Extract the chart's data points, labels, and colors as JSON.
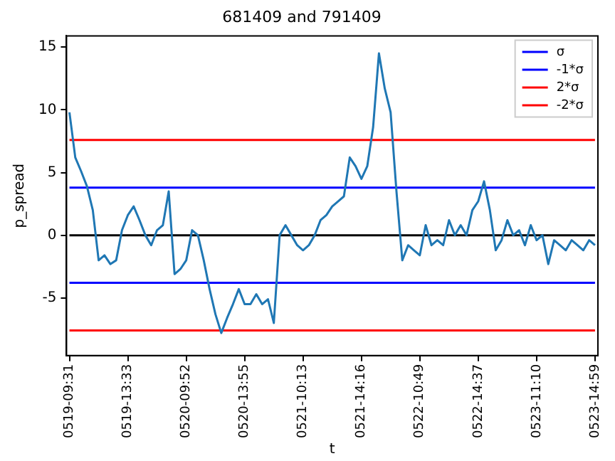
{
  "chart_data": {
    "type": "line",
    "title": "681409 and 791409",
    "xlabel": "t",
    "ylabel": "p_spread",
    "categories": [
      "0519-09:31",
      null,
      null,
      null,
      null,
      null,
      null,
      null,
      null,
      null,
      "0519-13:33",
      null,
      null,
      null,
      null,
      null,
      null,
      null,
      null,
      null,
      "0520-09:52",
      null,
      null,
      null,
      null,
      null,
      null,
      null,
      null,
      null,
      "0520-13:55",
      null,
      null,
      null,
      null,
      null,
      null,
      null,
      null,
      null,
      "0521-10:13",
      null,
      null,
      null,
      null,
      null,
      null,
      null,
      null,
      null,
      "0521-14:16",
      null,
      null,
      null,
      null,
      null,
      null,
      null,
      null,
      null,
      "0522-10:49",
      null,
      null,
      null,
      null,
      null,
      null,
      null,
      null,
      null,
      "0522-14:37",
      null,
      null,
      null,
      null,
      null,
      null,
      null,
      null,
      null,
      "0523-11:10",
      null,
      null,
      null,
      null,
      null,
      null,
      null,
      null,
      null,
      "0523-14:59"
    ],
    "series": [
      {
        "color": "#1f77b4",
        "values": [
          9.8,
          6.2,
          5.1,
          3.9,
          2,
          -2,
          -1.6,
          -2.3,
          -2,
          0.4,
          1.6,
          2.3,
          1.2,
          0,
          -0.8,
          0.4,
          0.8,
          3.5,
          -3.1,
          -2.7,
          -2,
          0.4,
          0,
          -2,
          -4.3,
          -6.3,
          -7.8,
          -6.6,
          -5.5,
          -4.3,
          -5.5,
          -5.5,
          -4.7,
          -5.5,
          -5.1,
          -7,
          0,
          0.8,
          0,
          -0.8,
          -1.2,
          -0.8,
          0,
          1.2,
          1.6,
          2.3,
          2.7,
          3.1,
          6.2,
          5.5,
          4.5,
          5.5,
          8.6,
          14.5,
          11.7,
          9.8,
          3.5,
          -2,
          -0.8,
          -1.2,
          -1.6,
          0.8,
          -0.8,
          -0.4,
          -0.8,
          1.2,
          0,
          0.8,
          0,
          2,
          2.7,
          4.3,
          2,
          -1.2,
          -0.4,
          1.2,
          0,
          0.4,
          -0.8,
          0.8,
          -0.4,
          0,
          -2.3,
          -0.4,
          -0.8,
          -1.2,
          -0.4,
          -0.8,
          -1.2,
          -0.4,
          -0.8
        ]
      },
      {
        "color": "#000000",
        "values": [
          0,
          0,
          0,
          0,
          0,
          0,
          0,
          0,
          0,
          0,
          0,
          0,
          0,
          0,
          0,
          0,
          0,
          0,
          0,
          0,
          0,
          0,
          0,
          0,
          0,
          0,
          0,
          0,
          0,
          0,
          0,
          0,
          0,
          0,
          0,
          0,
          0,
          0,
          0,
          0,
          0,
          0,
          0,
          0,
          0,
          0,
          0,
          0,
          0,
          0,
          0,
          0,
          0,
          0,
          0,
          0,
          0,
          0,
          0,
          0,
          0,
          0,
          0,
          0,
          0,
          0,
          0,
          0,
          0,
          0,
          0,
          0,
          0,
          0,
          0,
          0,
          0,
          0,
          0,
          0,
          0,
          0,
          0,
          0,
          0,
          0,
          0,
          0,
          0,
          0,
          0
        ]
      },
      {
        "name": "σ",
        "color": "#0000ff",
        "values": [
          3.8,
          3.8,
          3.8,
          3.8,
          3.8,
          3.8,
          3.8,
          3.8,
          3.8,
          3.8,
          3.8,
          3.8,
          3.8,
          3.8,
          3.8,
          3.8,
          3.8,
          3.8,
          3.8,
          3.8,
          3.8,
          3.8,
          3.8,
          3.8,
          3.8,
          3.8,
          3.8,
          3.8,
          3.8,
          3.8,
          3.8,
          3.8,
          3.8,
          3.8,
          3.8,
          3.8,
          3.8,
          3.8,
          3.8,
          3.8,
          3.8,
          3.8,
          3.8,
          3.8,
          3.8,
          3.8,
          3.8,
          3.8,
          3.8,
          3.8,
          3.8,
          3.8,
          3.8,
          3.8,
          3.8,
          3.8,
          3.8,
          3.8,
          3.8,
          3.8,
          3.8,
          3.8,
          3.8,
          3.8,
          3.8,
          3.8,
          3.8,
          3.8,
          3.8,
          3.8,
          3.8,
          3.8,
          3.8,
          3.8,
          3.8,
          3.8,
          3.8,
          3.8,
          3.8,
          3.8,
          3.8,
          3.8,
          3.8,
          3.8,
          3.8,
          3.8,
          3.8,
          3.8,
          3.8,
          3.8,
          3.8
        ]
      },
      {
        "name": "-1*σ",
        "color": "#0000ff",
        "values": [
          -3.8,
          -3.8,
          -3.8,
          -3.8,
          -3.8,
          -3.8,
          -3.8,
          -3.8,
          -3.8,
          -3.8,
          -3.8,
          -3.8,
          -3.8,
          -3.8,
          -3.8,
          -3.8,
          -3.8,
          -3.8,
          -3.8,
          -3.8,
          -3.8,
          -3.8,
          -3.8,
          -3.8,
          -3.8,
          -3.8,
          -3.8,
          -3.8,
          -3.8,
          -3.8,
          -3.8,
          -3.8,
          -3.8,
          -3.8,
          -3.8,
          -3.8,
          -3.8,
          -3.8,
          -3.8,
          -3.8,
          -3.8,
          -3.8,
          -3.8,
          -3.8,
          -3.8,
          -3.8,
          -3.8,
          -3.8,
          -3.8,
          -3.8,
          -3.8,
          -3.8,
          -3.8,
          -3.8,
          -3.8,
          -3.8,
          -3.8,
          -3.8,
          -3.8,
          -3.8,
          -3.8,
          -3.8,
          -3.8,
          -3.8,
          -3.8,
          -3.8,
          -3.8,
          -3.8,
          -3.8,
          -3.8,
          -3.8,
          -3.8,
          -3.8,
          -3.8,
          -3.8,
          -3.8,
          -3.8,
          -3.8,
          -3.8,
          -3.8,
          -3.8,
          -3.8,
          -3.8,
          -3.8,
          -3.8,
          -3.8,
          -3.8,
          -3.8,
          -3.8,
          -3.8,
          -3.8
        ]
      },
      {
        "name": "2*σ",
        "color": "#ff0000",
        "values": [
          7.6,
          7.6,
          7.6,
          7.6,
          7.6,
          7.6,
          7.6,
          7.6,
          7.6,
          7.6,
          7.6,
          7.6,
          7.6,
          7.6,
          7.6,
          7.6,
          7.6,
          7.6,
          7.6,
          7.6,
          7.6,
          7.6,
          7.6,
          7.6,
          7.6,
          7.6,
          7.6,
          7.6,
          7.6,
          7.6,
          7.6,
          7.6,
          7.6,
          7.6,
          7.6,
          7.6,
          7.6,
          7.6,
          7.6,
          7.6,
          7.6,
          7.6,
          7.6,
          7.6,
          7.6,
          7.6,
          7.6,
          7.6,
          7.6,
          7.6,
          7.6,
          7.6,
          7.6,
          7.6,
          7.6,
          7.6,
          7.6,
          7.6,
          7.6,
          7.6,
          7.6,
          7.6,
          7.6,
          7.6,
          7.6,
          7.6,
          7.6,
          7.6,
          7.6,
          7.6,
          7.6,
          7.6,
          7.6,
          7.6,
          7.6,
          7.6,
          7.6,
          7.6,
          7.6,
          7.6,
          7.6,
          7.6,
          7.6,
          7.6,
          7.6,
          7.6,
          7.6,
          7.6,
          7.6,
          7.6,
          7.6
        ]
      },
      {
        "name": "-2*σ",
        "color": "#ff0000",
        "values": [
          -7.6,
          -7.6,
          -7.6,
          -7.6,
          -7.6,
          -7.6,
          -7.6,
          -7.6,
          -7.6,
          -7.6,
          -7.6,
          -7.6,
          -7.6,
          -7.6,
          -7.6,
          -7.6,
          -7.6,
          -7.6,
          -7.6,
          -7.6,
          -7.6,
          -7.6,
          -7.6,
          -7.6,
          -7.6,
          -7.6,
          -7.6,
          -7.6,
          -7.6,
          -7.6,
          -7.6,
          -7.6,
          -7.6,
          -7.6,
          -7.6,
          -7.6,
          -7.6,
          -7.6,
          -7.6,
          -7.6,
          -7.6,
          -7.6,
          -7.6,
          -7.6,
          -7.6,
          -7.6,
          -7.6,
          -7.6,
          -7.6,
          -7.6,
          -7.6,
          -7.6,
          -7.6,
          -7.6,
          -7.6,
          -7.6,
          -7.6,
          -7.6,
          -7.6,
          -7.6,
          -7.6,
          -7.6,
          -7.6,
          -7.6,
          -7.6,
          -7.6,
          -7.6,
          -7.6,
          -7.6,
          -7.6,
          -7.6,
          -7.6,
          -7.6,
          -7.6,
          -7.6,
          -7.6,
          -7.6,
          -7.6,
          -7.6,
          -7.6,
          -7.6,
          -7.6,
          -7.6,
          -7.6,
          -7.6,
          -7.6,
          -7.6,
          -7.6,
          -7.6,
          -7.6,
          -7.6
        ]
      }
    ],
    "ylim": [
      -9.6,
      15.9
    ],
    "yticks": [
      -5,
      0,
      5,
      10,
      15
    ],
    "grid": false,
    "legend": "top right",
    "marker": "none",
    "line_style": "solid"
  }
}
